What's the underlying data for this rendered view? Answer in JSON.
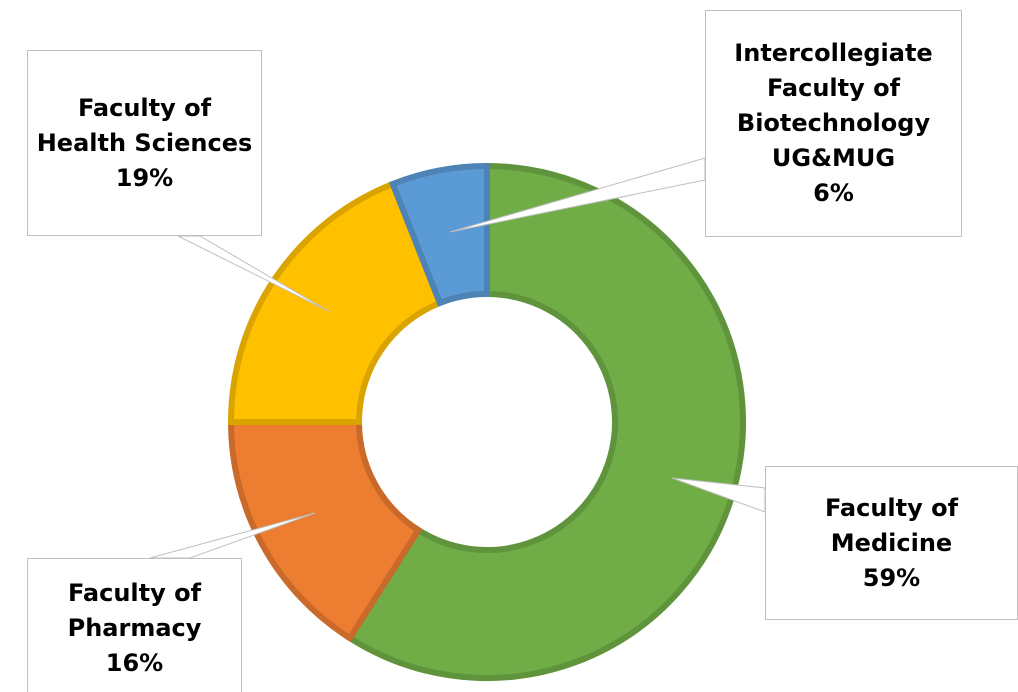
{
  "chart_data": {
    "type": "donut",
    "categories": [
      "Faculty of Medicine",
      "Faculty of Pharmacy",
      "Faculty of Health Sciences",
      "Intercollegiate Faculty of Biotechnology UG&MUG"
    ],
    "values": [
      59,
      16,
      19,
      6
    ],
    "value_labels": [
      "59%",
      "16%",
      "19%",
      "6%"
    ],
    "colors": [
      "#70ad47",
      "#ed7d31",
      "#ffc000",
      "#5b9bd5"
    ]
  }
}
